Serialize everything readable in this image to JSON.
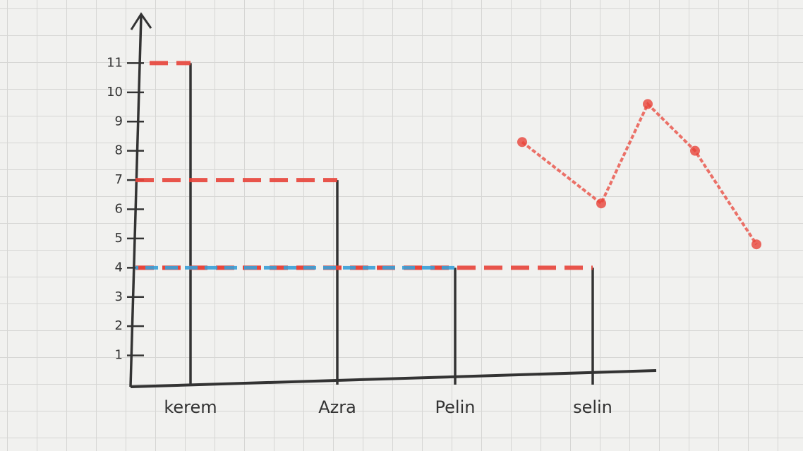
{
  "chart_data": [
    {
      "type": "bar",
      "categories": [
        "kerem",
        "Azra",
        "Pelin",
        "selin"
      ],
      "series": [
        {
          "color": "#e8443a",
          "values": [
            11,
            7,
            4,
            4
          ]
        },
        {
          "color": "#3aa0d8",
          "values": [
            null,
            null,
            4,
            null
          ]
        }
      ],
      "ylim": [
        0,
        12
      ],
      "yticks": [
        1,
        2,
        3,
        4,
        5,
        6,
        7,
        8,
        9,
        10,
        11
      ]
    },
    {
      "type": "line",
      "categories": [
        null,
        null,
        null,
        null,
        null
      ],
      "color": "#e8443a",
      "values": [
        8.3,
        6.2,
        9.6,
        8.0,
        4.8
      ],
      "ylim": [
        0,
        12
      ]
    }
  ]
}
